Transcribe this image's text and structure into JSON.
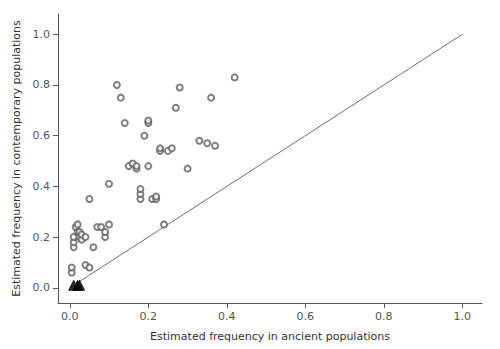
{
  "chart_data": {
    "type": "scatter",
    "xlabel": "Estimated frequency in ancient populations",
    "ylabel": "Estimated frequency in contemporary populations",
    "xlim": [
      -0.03,
      1.05
    ],
    "ylim": [
      -0.06,
      1.08
    ],
    "xticks": [
      {
        "value": 0.0,
        "label": "0.0"
      },
      0.2,
      0.4,
      0.6,
      0.8,
      {
        "value": 1.0,
        "label": "1.0"
      }
    ],
    "yticks": [
      {
        "value": 0.0,
        "label": "0.0"
      },
      0.2,
      0.4,
      0.6,
      0.8,
      {
        "value": 1.0,
        "label": "1.0"
      }
    ],
    "grid": false,
    "series": [
      {
        "type": "line",
        "color": "#707070",
        "values": [
          [
            0,
            0
          ],
          [
            1,
            1
          ]
        ]
      },
      {
        "type": "scatter",
        "marker": "open_circle",
        "color": "#606060",
        "values": [
          [
            0.005,
            0.06
          ],
          [
            0.005,
            0.08
          ],
          [
            0.01,
            0.16
          ],
          [
            0.01,
            0.18
          ],
          [
            0.01,
            0.2
          ],
          [
            0.015,
            0.24
          ],
          [
            0.02,
            0.22
          ],
          [
            0.02,
            0.25
          ],
          [
            0.025,
            0.2
          ],
          [
            0.025,
            0.22
          ],
          [
            0.03,
            0.19
          ],
          [
            0.03,
            0.21
          ],
          [
            0.04,
            0.09
          ],
          [
            0.04,
            0.2
          ],
          [
            0.05,
            0.08
          ],
          [
            0.05,
            0.35
          ],
          [
            0.06,
            0.16
          ],
          [
            0.07,
            0.24
          ],
          [
            0.08,
            0.24
          ],
          [
            0.09,
            0.2
          ],
          [
            0.09,
            0.22
          ],
          [
            0.1,
            0.25
          ],
          [
            0.1,
            0.41
          ],
          [
            0.12,
            0.8
          ],
          [
            0.13,
            0.75
          ],
          [
            0.14,
            0.65
          ],
          [
            0.15,
            0.48
          ],
          [
            0.16,
            0.49
          ],
          [
            0.17,
            0.47
          ],
          [
            0.17,
            0.48
          ],
          [
            0.18,
            0.35
          ],
          [
            0.18,
            0.37
          ],
          [
            0.18,
            0.39
          ],
          [
            0.19,
            0.6
          ],
          [
            0.2,
            0.48
          ],
          [
            0.2,
            0.65
          ],
          [
            0.2,
            0.66
          ],
          [
            0.21,
            0.35
          ],
          [
            0.22,
            0.35
          ],
          [
            0.22,
            0.36
          ],
          [
            0.23,
            0.54
          ],
          [
            0.23,
            0.55
          ],
          [
            0.24,
            0.25
          ],
          [
            0.25,
            0.54
          ],
          [
            0.26,
            0.55
          ],
          [
            0.27,
            0.71
          ],
          [
            0.28,
            0.79
          ],
          [
            0.3,
            0.47
          ],
          [
            0.33,
            0.58
          ],
          [
            0.35,
            0.57
          ],
          [
            0.36,
            0.75
          ],
          [
            0.37,
            0.56
          ],
          [
            0.42,
            0.83
          ]
        ]
      },
      {
        "type": "scatter",
        "marker": "triangle",
        "color": "black",
        "values": [
          [
            0.01,
            0.01
          ],
          [
            0.02,
            0.01
          ],
          [
            0.025,
            0.01
          ]
        ]
      }
    ]
  }
}
